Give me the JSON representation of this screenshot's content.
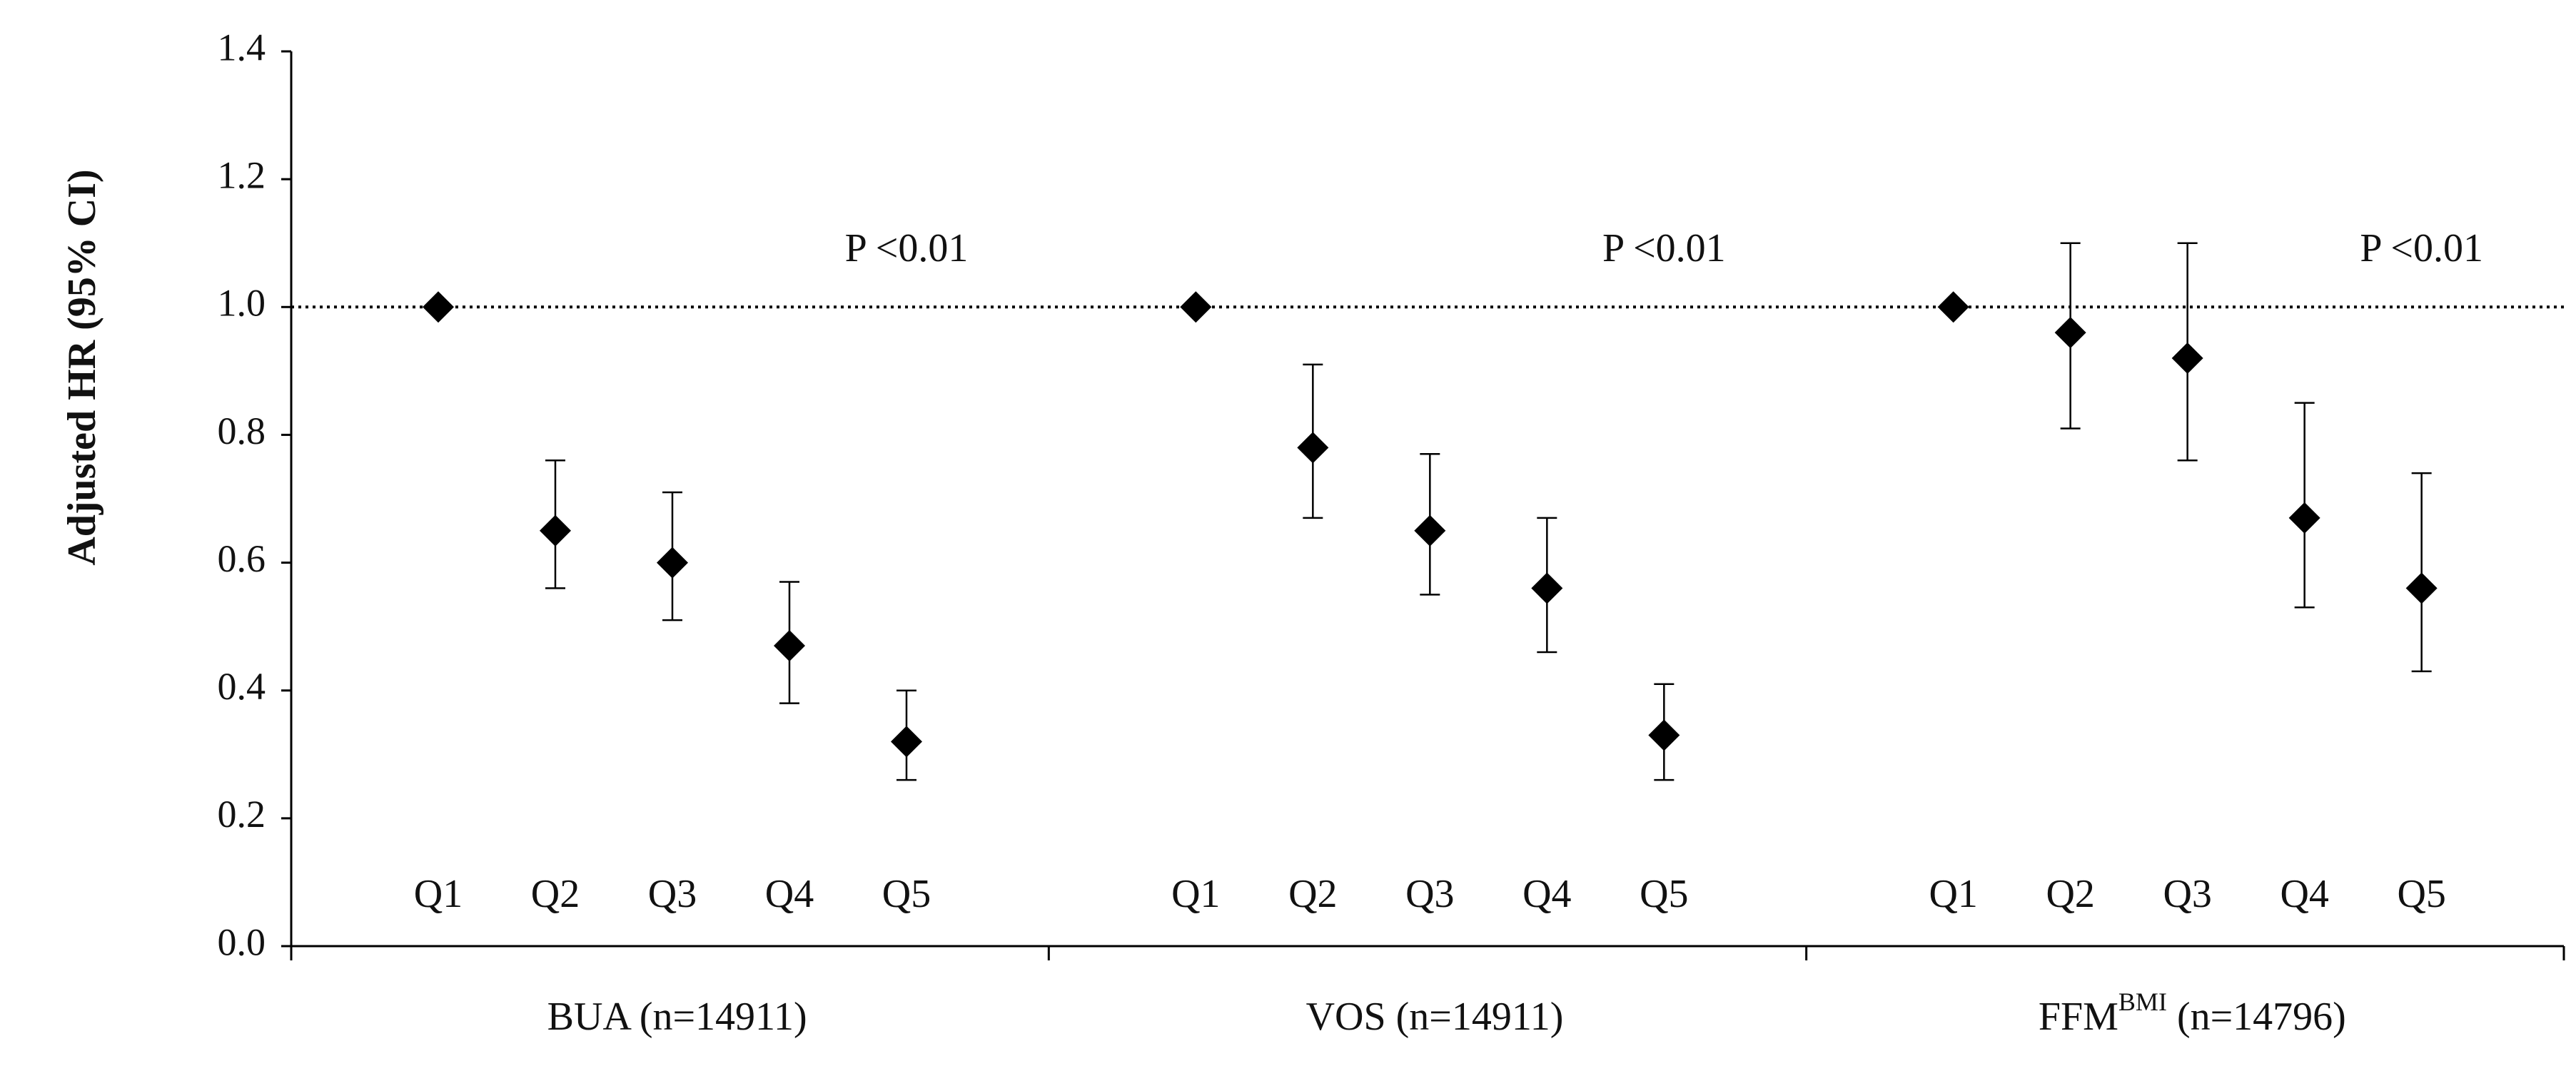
{
  "chart_data": {
    "type": "scatter",
    "ylabel": "Adjusted HR (95% CI)",
    "ylim": [
      0.0,
      1.4
    ],
    "yticks": [
      "0.0",
      "0.2",
      "0.4",
      "0.6",
      "0.8",
      "1.0",
      "1.2",
      "1.4"
    ],
    "reference_line": 1.0,
    "groups": [
      {
        "name": "BUA",
        "label": "BUA (n=14911)",
        "label_main": "BUA",
        "label_sup": "",
        "label_rest": " (n=14911)",
        "p_value": "P <0.01",
        "categories": [
          "Q1",
          "Q2",
          "Q3",
          "Q4",
          "Q5"
        ],
        "hr": [
          1.0,
          0.65,
          0.6,
          0.47,
          0.32
        ],
        "ci_low": [
          null,
          0.56,
          0.51,
          0.38,
          0.26
        ],
        "ci_high": [
          null,
          0.76,
          0.71,
          0.57,
          0.4
        ]
      },
      {
        "name": "VOS",
        "label": "VOS (n=14911)",
        "label_main": "VOS",
        "label_sup": "",
        "label_rest": " (n=14911)",
        "p_value": "P <0.01",
        "categories": [
          "Q1",
          "Q2",
          "Q3",
          "Q4",
          "Q5"
        ],
        "hr": [
          1.0,
          0.78,
          0.65,
          0.56,
          0.33
        ],
        "ci_low": [
          null,
          0.67,
          0.55,
          0.46,
          0.26
        ],
        "ci_high": [
          null,
          0.91,
          0.77,
          0.67,
          0.41
        ]
      },
      {
        "name": "FFMBMI",
        "label": "FFMBMI (n=14796)",
        "label_main": "FFM",
        "label_sup": "BMI",
        "label_rest": " (n=14796)",
        "p_value": "P <0.01",
        "categories": [
          "Q1",
          "Q2",
          "Q3",
          "Q4",
          "Q5"
        ],
        "hr": [
          1.0,
          0.96,
          0.92,
          0.67,
          0.56
        ],
        "ci_low": [
          null,
          0.81,
          0.76,
          0.53,
          0.43
        ],
        "ci_high": [
          null,
          1.1,
          1.1,
          0.85,
          0.74
        ]
      }
    ]
  }
}
